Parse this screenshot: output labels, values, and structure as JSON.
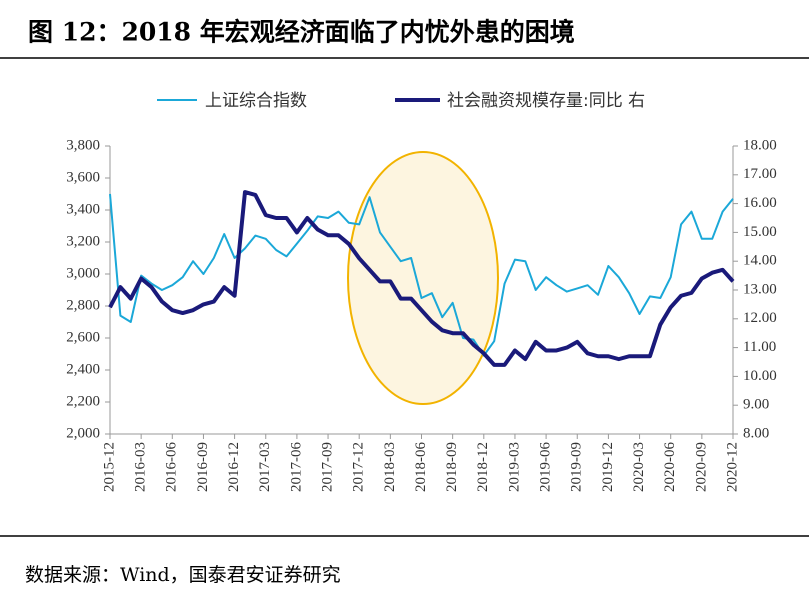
{
  "chart_data": {
    "type": "line",
    "title": "图 12：2018 年宏观经济面临了内忧外患的困境",
    "source": "数据来源：Wind，国泰君安证券研究",
    "categories": [
      "2015-12",
      null,
      null,
      "2016-03",
      null,
      null,
      "2016-06",
      null,
      null,
      "2016-09",
      null,
      null,
      "2016-12",
      null,
      null,
      "2017-03",
      null,
      null,
      "2017-06",
      null,
      null,
      "2017-09",
      null,
      null,
      "2017-12",
      null,
      null,
      "2018-03",
      null,
      null,
      "2018-06",
      null,
      null,
      "2018-09",
      null,
      null,
      "2018-12",
      null,
      null,
      "2019-03",
      null,
      null,
      "2019-06",
      null,
      null,
      "2019-09",
      null,
      null,
      "2019-12",
      null,
      null,
      "2020-03",
      null,
      null,
      "2020-06",
      null,
      null,
      "2020-09",
      null,
      null,
      "2020-12"
    ],
    "series": [
      {
        "name": "上证综合指数",
        "color": "#1ba8d8",
        "values": [
          3500,
          2740,
          2700,
          2990,
          2940,
          2900,
          2930,
          2980,
          3080,
          3000,
          3100,
          3250,
          3100,
          3160,
          3240,
          3220,
          3150,
          3110,
          3190,
          3270,
          3360,
          3350,
          3390,
          3320,
          3310,
          3480,
          3260,
          3170,
          3080,
          3100,
          2850,
          2880,
          2730,
          2820,
          2600,
          2590,
          2490,
          2580,
          2940,
          3090,
          3080,
          2900,
          2980,
          2930,
          2890,
          2910,
          2930,
          2870,
          3050,
          2980,
          2880,
          2750,
          2860,
          2850,
          2980,
          3310,
          3390,
          3220,
          3220,
          3390,
          3470
        ]
      },
      {
        "name": "社会融资规模存量:同比 右",
        "color": "#1a1a7a",
        "axis": "y2",
        "values": [
          12.4,
          13.1,
          12.7,
          13.4,
          13.1,
          12.6,
          12.3,
          12.2,
          12.3,
          12.5,
          12.6,
          13.1,
          12.8,
          16.4,
          16.3,
          15.6,
          15.5,
          15.5,
          15.0,
          15.5,
          15.1,
          14.9,
          14.9,
          14.6,
          14.1,
          13.7,
          13.3,
          13.3,
          12.7,
          12.7,
          12.3,
          11.9,
          11.6,
          11.5,
          11.5,
          11.1,
          10.8,
          10.4,
          10.4,
          10.9,
          10.6,
          11.2,
          10.9,
          10.9,
          11.0,
          11.2,
          10.8,
          10.7,
          10.7,
          10.6,
          10.7,
          10.7,
          10.7,
          11.8,
          12.4,
          12.8,
          12.9,
          13.4,
          13.6,
          13.7,
          13.3
        ]
      }
    ],
    "ylim": [
      2000,
      3800
    ],
    "yticks": [
      {
        "value": 2000,
        "label": "2,000"
      },
      {
        "value": 2200,
        "label": "2,200"
      },
      {
        "value": 2400,
        "label": "2,400"
      },
      {
        "value": 2600,
        "label": "2,600"
      },
      {
        "value": 2800,
        "label": "2,800"
      },
      {
        "value": 3000,
        "label": "3,000"
      },
      {
        "value": 3200,
        "label": "3,200"
      },
      {
        "value": 3400,
        "label": "3,400"
      },
      {
        "value": 3600,
        "label": "3,600"
      },
      {
        "value": 3800,
        "label": "3,800"
      }
    ],
    "y2lim": [
      8,
      18
    ],
    "y2ticks": [
      {
        "value": 8,
        "label": "8.00"
      },
      {
        "value": 9,
        "label": "9.00"
      },
      {
        "value": 10,
        "label": "10.00"
      },
      {
        "value": 11,
        "label": "11.00"
      },
      {
        "value": 12,
        "label": "12.00"
      },
      {
        "value": 13,
        "label": "13.00"
      },
      {
        "value": 14,
        "label": "14.00"
      },
      {
        "value": 15,
        "label": "15.00"
      },
      {
        "value": 16,
        "label": "16.00"
      },
      {
        "value": 17,
        "label": "17.00"
      },
      {
        "value": 18,
        "label": "18.00"
      }
    ]
  }
}
